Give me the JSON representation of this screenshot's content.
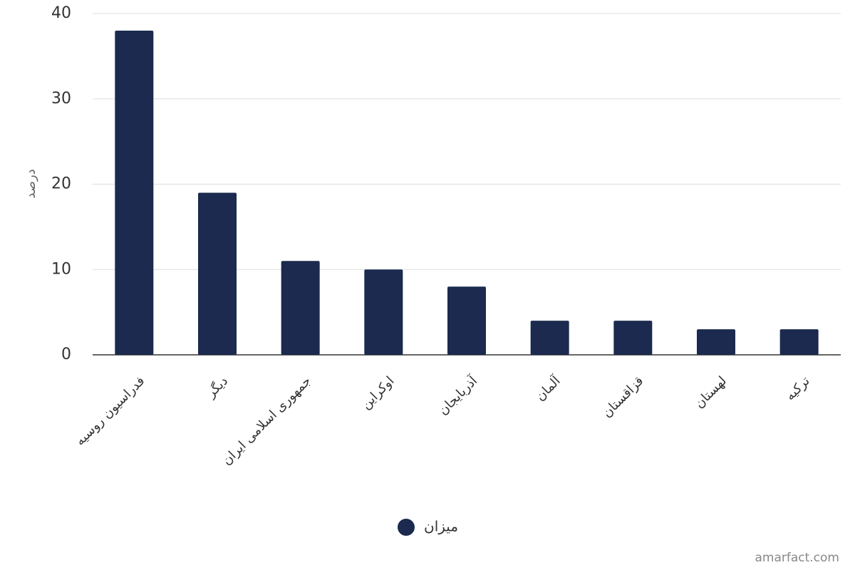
{
  "chart_data": {
    "type": "bar",
    "y_label": "درصد",
    "categories": [
      "فدراسیون روسیه",
      "دیگر",
      "جمهوری اسلامی ایران",
      "اوکراین",
      "آذربایجان",
      "آلمان",
      "قزاقستان",
      "لهستان",
      "ترکیه"
    ],
    "series": [
      {
        "name": "میزان",
        "color": "#1b2a4e",
        "values": [
          38,
          19,
          11,
          10,
          8,
          4,
          4,
          3,
          3
        ]
      }
    ],
    "ylim": [
      0,
      40
    ],
    "yticks": [
      0,
      10,
      20,
      30,
      40
    ],
    "grid": true,
    "legend": "bottom"
  },
  "credit": "amarfact.com"
}
